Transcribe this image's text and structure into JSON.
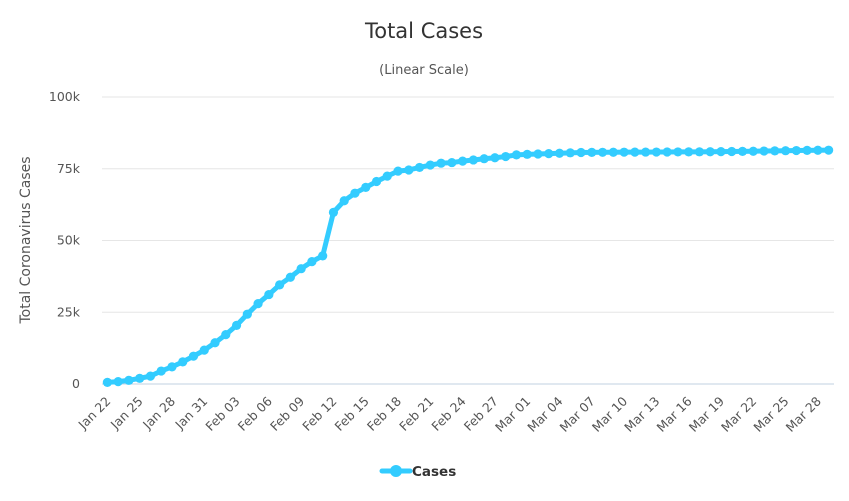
{
  "chart_data": {
    "type": "line",
    "title": "Total Cases",
    "subtitle": "(Linear Scale)",
    "xlabel": "",
    "ylabel": "Total Coronavirus Cases",
    "ylim": [
      0,
      100000
    ],
    "yticks": [
      0,
      25000,
      50000,
      75000,
      100000
    ],
    "ytick_labels": [
      "0",
      "25k",
      "50k",
      "75k",
      "100k"
    ],
    "grid": true,
    "legend_position": "bottom-center",
    "series_color": "#33ccff",
    "x_tick_labels": [
      "Jan 22",
      "Jan 25",
      "Jan 28",
      "Jan 31",
      "Feb 03",
      "Feb 06",
      "Feb 09",
      "Feb 12",
      "Feb 15",
      "Feb 18",
      "Feb 21",
      "Feb 24",
      "Feb 27",
      "Mar 01",
      "Mar 04",
      "Mar 07",
      "Mar 10",
      "Mar 13",
      "Mar 16",
      "Mar 19",
      "Mar 22",
      "Mar 25",
      "Mar 28"
    ],
    "x": [
      "Jan 22",
      "Jan 23",
      "Jan 24",
      "Jan 25",
      "Jan 26",
      "Jan 27",
      "Jan 28",
      "Jan 29",
      "Jan 30",
      "Jan 31",
      "Feb 01",
      "Feb 02",
      "Feb 03",
      "Feb 04",
      "Feb 05",
      "Feb 06",
      "Feb 07",
      "Feb 08",
      "Feb 09",
      "Feb 10",
      "Feb 11",
      "Feb 12",
      "Feb 13",
      "Feb 14",
      "Feb 15",
      "Feb 16",
      "Feb 17",
      "Feb 18",
      "Feb 19",
      "Feb 20",
      "Feb 21",
      "Feb 22",
      "Feb 23",
      "Feb 24",
      "Feb 25",
      "Feb 26",
      "Feb 27",
      "Feb 28",
      "Feb 29",
      "Mar 01",
      "Mar 02",
      "Mar 03",
      "Mar 04",
      "Mar 05",
      "Mar 06",
      "Mar 07",
      "Mar 08",
      "Mar 09",
      "Mar 10",
      "Mar 11",
      "Mar 12",
      "Mar 13",
      "Mar 14",
      "Mar 15",
      "Mar 16",
      "Mar 17",
      "Mar 18",
      "Mar 19",
      "Mar 20",
      "Mar 21",
      "Mar 22",
      "Mar 23",
      "Mar 24",
      "Mar 25",
      "Mar 26",
      "Mar 27",
      "Mar 28",
      "Mar 29"
    ],
    "series": [
      {
        "name": "Cases",
        "values": [
          571,
          830,
          1287,
          1975,
          2744,
          4515,
          5974,
          7711,
          9692,
          11791,
          14380,
          17205,
          20438,
          24324,
          28018,
          31161,
          34546,
          37198,
          40171,
          42638,
          44653,
          59804,
          63851,
          66492,
          68500,
          70548,
          72436,
          74185,
          74576,
          75465,
          76288,
          76936,
          77150,
          77658,
          78064,
          78497,
          78824,
          79251,
          79824,
          80026,
          80151,
          80270,
          80409,
          80552,
          80651,
          80695,
          80735,
          80754,
          80778,
          80793,
          80813,
          80824,
          80844,
          80860,
          80881,
          80894,
          80928,
          80967,
          81008,
          81054,
          81093,
          81171,
          81218,
          81285,
          81340,
          81394,
          81439,
          81470
        ]
      }
    ],
    "legend": [
      {
        "label": "Cases"
      }
    ]
  }
}
